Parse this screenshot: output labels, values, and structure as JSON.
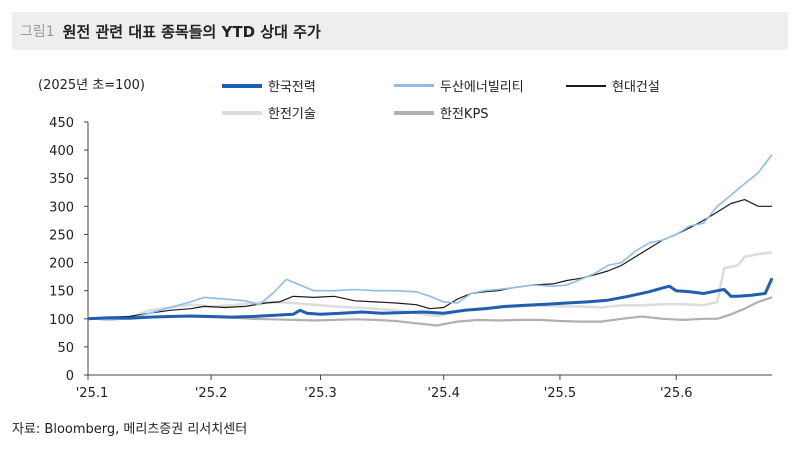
{
  "header": {
    "figure_label": "그림1",
    "title": "원전 관련 대표 종목들의 YTD 상대 주가"
  },
  "unit_note": "(2025년 초=100)",
  "source": "자료: Bloomberg, 메리츠증권 리서치센터",
  "chart_data": {
    "type": "line",
    "title": "원전 관련 대표 종목들의 YTD 상대 주가",
    "xlabel": "",
    "ylabel": "(2025년 초=100)",
    "ylim": [
      0,
      450
    ],
    "yticks": [
      0,
      50,
      100,
      150,
      200,
      250,
      300,
      350,
      400,
      450
    ],
    "xlim": [
      0,
      1
    ],
    "xticks": [
      {
        "label": "'25.1",
        "x": 0.0
      },
      {
        "label": "'25.2",
        "x": 0.18
      },
      {
        "label": "'25.3",
        "x": 0.34
      },
      {
        "label": "'25.4",
        "x": 0.52
      },
      {
        "label": "'25.5",
        "x": 0.69
      },
      {
        "label": "'25.6",
        "x": 0.86
      }
    ],
    "grid": false,
    "legend": "top",
    "series": [
      {
        "name": "한국전력",
        "color": "#1f5fae",
        "width": 3,
        "points": [
          [
            0,
            100
          ],
          [
            0.03,
            102
          ],
          [
            0.06,
            101
          ],
          [
            0.09,
            103
          ],
          [
            0.12,
            104
          ],
          [
            0.15,
            105
          ],
          [
            0.18,
            104
          ],
          [
            0.21,
            103
          ],
          [
            0.24,
            104
          ],
          [
            0.27,
            106
          ],
          [
            0.3,
            108
          ],
          [
            0.31,
            115
          ],
          [
            0.32,
            110
          ],
          [
            0.34,
            108
          ],
          [
            0.37,
            110
          ],
          [
            0.4,
            112
          ],
          [
            0.43,
            110
          ],
          [
            0.46,
            111
          ],
          [
            0.49,
            112
          ],
          [
            0.52,
            110
          ],
          [
            0.55,
            115
          ],
          [
            0.58,
            118
          ],
          [
            0.61,
            122
          ],
          [
            0.64,
            124
          ],
          [
            0.67,
            126
          ],
          [
            0.7,
            128
          ],
          [
            0.73,
            130
          ],
          [
            0.76,
            133
          ],
          [
            0.79,
            140
          ],
          [
            0.82,
            148
          ],
          [
            0.84,
            155
          ],
          [
            0.85,
            158
          ],
          [
            0.86,
            150
          ],
          [
            0.88,
            148
          ],
          [
            0.9,
            145
          ],
          [
            0.92,
            150
          ],
          [
            0.93,
            152
          ],
          [
            0.94,
            140
          ],
          [
            0.95,
            140
          ],
          [
            0.97,
            142
          ],
          [
            0.99,
            145
          ],
          [
            1.0,
            172
          ]
        ]
      },
      {
        "name": "두산에너빌리티",
        "color": "#8dbde6",
        "width": 1.6,
        "points": [
          [
            0,
            100
          ],
          [
            0.03,
            98
          ],
          [
            0.06,
            100
          ],
          [
            0.09,
            110
          ],
          [
            0.12,
            120
          ],
          [
            0.15,
            130
          ],
          [
            0.17,
            138
          ],
          [
            0.2,
            135
          ],
          [
            0.23,
            132
          ],
          [
            0.25,
            125
          ],
          [
            0.27,
            145
          ],
          [
            0.29,
            170
          ],
          [
            0.31,
            160
          ],
          [
            0.33,
            150
          ],
          [
            0.36,
            150
          ],
          [
            0.39,
            152
          ],
          [
            0.42,
            150
          ],
          [
            0.45,
            150
          ],
          [
            0.48,
            148
          ],
          [
            0.5,
            140
          ],
          [
            0.52,
            130
          ],
          [
            0.54,
            128
          ],
          [
            0.56,
            145
          ],
          [
            0.58,
            150
          ],
          [
            0.6,
            152
          ],
          [
            0.62,
            155
          ],
          [
            0.65,
            160
          ],
          [
            0.68,
            158
          ],
          [
            0.7,
            160
          ],
          [
            0.72,
            170
          ],
          [
            0.74,
            180
          ],
          [
            0.76,
            195
          ],
          [
            0.78,
            200
          ],
          [
            0.8,
            220
          ],
          [
            0.82,
            235
          ],
          [
            0.84,
            240
          ],
          [
            0.86,
            250
          ],
          [
            0.88,
            265
          ],
          [
            0.9,
            270
          ],
          [
            0.92,
            300
          ],
          [
            0.94,
            320
          ],
          [
            0.96,
            340
          ],
          [
            0.98,
            360
          ],
          [
            1.0,
            392
          ]
        ]
      },
      {
        "name": "현대건설",
        "color": "#1a1a1a",
        "width": 1.2,
        "points": [
          [
            0,
            100
          ],
          [
            0.03,
            103
          ],
          [
            0.06,
            104
          ],
          [
            0.09,
            110
          ],
          [
            0.12,
            115
          ],
          [
            0.15,
            118
          ],
          [
            0.17,
            122
          ],
          [
            0.2,
            120
          ],
          [
            0.23,
            122
          ],
          [
            0.26,
            128
          ],
          [
            0.28,
            130
          ],
          [
            0.3,
            140
          ],
          [
            0.33,
            138
          ],
          [
            0.36,
            140
          ],
          [
            0.39,
            132
          ],
          [
            0.42,
            130
          ],
          [
            0.45,
            128
          ],
          [
            0.48,
            125
          ],
          [
            0.5,
            118
          ],
          [
            0.52,
            120
          ],
          [
            0.54,
            135
          ],
          [
            0.56,
            145
          ],
          [
            0.58,
            148
          ],
          [
            0.6,
            150
          ],
          [
            0.62,
            155
          ],
          [
            0.65,
            160
          ],
          [
            0.68,
            162
          ],
          [
            0.7,
            168
          ],
          [
            0.72,
            172
          ],
          [
            0.74,
            178
          ],
          [
            0.76,
            185
          ],
          [
            0.78,
            195
          ],
          [
            0.8,
            210
          ],
          [
            0.82,
            225
          ],
          [
            0.84,
            240
          ],
          [
            0.86,
            250
          ],
          [
            0.88,
            262
          ],
          [
            0.9,
            275
          ],
          [
            0.92,
            290
          ],
          [
            0.94,
            305
          ],
          [
            0.96,
            312
          ],
          [
            0.98,
            300
          ],
          [
            1.0,
            300
          ]
        ]
      },
      {
        "name": "한전기술",
        "color": "#dddddd",
        "width": 2.6,
        "points": [
          [
            0,
            100
          ],
          [
            0.03,
            101
          ],
          [
            0.06,
            102
          ],
          [
            0.09,
            115
          ],
          [
            0.12,
            120
          ],
          [
            0.15,
            125
          ],
          [
            0.18,
            122
          ],
          [
            0.21,
            124
          ],
          [
            0.24,
            128
          ],
          [
            0.27,
            130
          ],
          [
            0.3,
            128
          ],
          [
            0.33,
            125
          ],
          [
            0.36,
            122
          ],
          [
            0.39,
            120
          ],
          [
            0.42,
            118
          ],
          [
            0.45,
            115
          ],
          [
            0.48,
            110
          ],
          [
            0.51,
            105
          ],
          [
            0.54,
            112
          ],
          [
            0.57,
            118
          ],
          [
            0.6,
            120
          ],
          [
            0.63,
            122
          ],
          [
            0.66,
            124
          ],
          [
            0.69,
            122
          ],
          [
            0.72,
            122
          ],
          [
            0.75,
            120
          ],
          [
            0.78,
            124
          ],
          [
            0.81,
            124
          ],
          [
            0.84,
            126
          ],
          [
            0.87,
            126
          ],
          [
            0.9,
            124
          ],
          [
            0.92,
            130
          ],
          [
            0.93,
            190
          ],
          [
            0.95,
            195
          ],
          [
            0.96,
            210
          ],
          [
            0.98,
            215
          ],
          [
            1.0,
            218
          ]
        ]
      },
      {
        "name": "한전KPS",
        "color": "#b0b0b0",
        "width": 2.2,
        "points": [
          [
            0,
            100
          ],
          [
            0.03,
            100
          ],
          [
            0.06,
            101
          ],
          [
            0.09,
            103
          ],
          [
            0.12,
            104
          ],
          [
            0.15,
            104
          ],
          [
            0.18,
            103
          ],
          [
            0.21,
            102
          ],
          [
            0.24,
            100
          ],
          [
            0.27,
            99
          ],
          [
            0.3,
            98
          ],
          [
            0.33,
            97
          ],
          [
            0.36,
            98
          ],
          [
            0.39,
            99
          ],
          [
            0.42,
            98
          ],
          [
            0.45,
            96
          ],
          [
            0.48,
            92
          ],
          [
            0.51,
            88
          ],
          [
            0.54,
            95
          ],
          [
            0.57,
            98
          ],
          [
            0.6,
            97
          ],
          [
            0.63,
            98
          ],
          [
            0.66,
            98
          ],
          [
            0.69,
            96
          ],
          [
            0.72,
            95
          ],
          [
            0.75,
            95
          ],
          [
            0.78,
            100
          ],
          [
            0.81,
            104
          ],
          [
            0.84,
            100
          ],
          [
            0.87,
            98
          ],
          [
            0.9,
            100
          ],
          [
            0.92,
            100
          ],
          [
            0.94,
            108
          ],
          [
            0.96,
            118
          ],
          [
            0.98,
            130
          ],
          [
            1.0,
            138
          ]
        ]
      }
    ]
  }
}
